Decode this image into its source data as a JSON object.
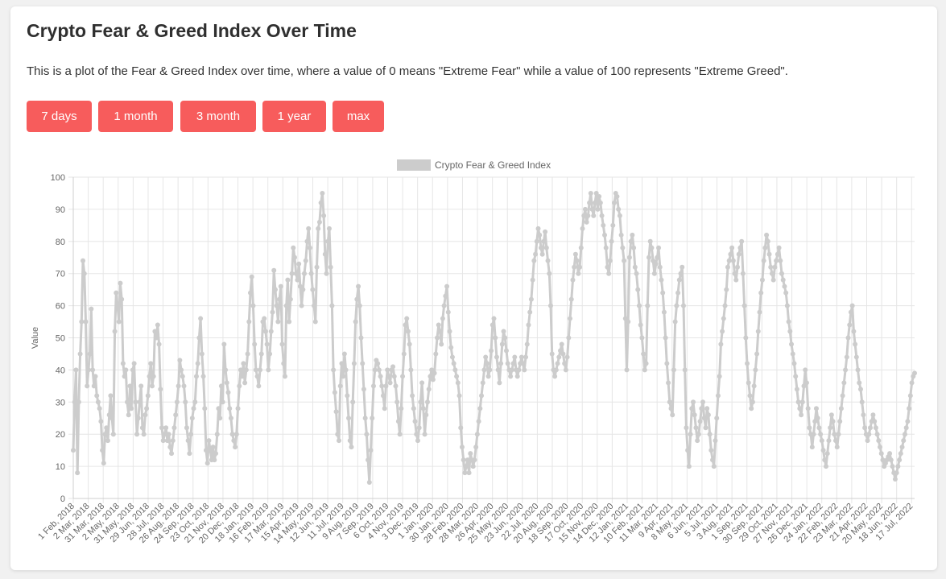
{
  "page": {
    "title": "Crypto Fear & Greed Index Over Time",
    "description": "This is a plot of the Fear & Greed Index over time, where a value of 0 means \"Extreme Fear\" while a value of 100 represents \"Extreme Greed\".",
    "buttons": [
      "7 days",
      "1 month",
      "3 month",
      "1 year",
      "max"
    ]
  },
  "colors": {
    "button": "#f75c5c",
    "line": "#cccccc",
    "grid": "#e6e6e6"
  },
  "chart_data": {
    "type": "line",
    "ylabel": "Value",
    "ylim": [
      0,
      100
    ],
    "ytick_labels": [
      "0",
      "10",
      "20",
      "30",
      "40",
      "50",
      "60",
      "70",
      "80",
      "90",
      "100"
    ],
    "xtick_labels": [
      "1 Feb, 2018",
      "2 Mar, 2018",
      "31 Mar, 2018",
      "2 May, 2018",
      "31 May, 2018",
      "29 Jun, 2018",
      "28 Jul, 2018",
      "26 Aug, 2018",
      "24 Sep, 2018",
      "23 Oct, 2018",
      "21 Nov, 2018",
      "20 Dec, 2018",
      "18 Jan, 2019",
      "16 Feb, 2019",
      "17 Mar, 2019",
      "15 Apr, 2019",
      "14 May, 2019",
      "12 Jun, 2019",
      "11 Jul, 2019",
      "9 Aug, 2019",
      "7 Sep, 2019",
      "6 Oct, 2019",
      "4 Nov, 2019",
      "3 Dec, 2019",
      "1 Jan, 2020",
      "30 Jan, 2020",
      "28 Feb, 2020",
      "28 Mar, 2020",
      "26 Apr, 2020",
      "25 May, 2020",
      "23 Jun, 2020",
      "22 Jul, 2020",
      "20 Aug, 2020",
      "18 Sep, 2020",
      "17 Oct, 2020",
      "15 Nov, 2020",
      "14 Dec, 2020",
      "12 Jan, 2021",
      "10 Feb, 2021",
      "11 Mar, 2021",
      "9 Apr, 2021",
      "8 May, 2021",
      "6 Jun, 2021",
      "5 Jul, 2021",
      "3 Aug, 2021",
      "1 Sep, 2021",
      "30 Sep, 2021",
      "29 Oct, 2021",
      "27 Nov, 2021",
      "26 Dec, 2021",
      "24 Jan, 2022",
      "22 Feb, 2022",
      "23 Mar, 2022",
      "21 Apr, 2022",
      "20 May, 2022",
      "18 Jun, 2022",
      "17 Jul, 2022"
    ],
    "grid": true,
    "legend": "top-center",
    "series": [
      {
        "name": "Crypto Fear & Greed Index",
        "values": [
          15,
          30,
          40,
          8,
          30,
          45,
          55,
          74,
          70,
          55,
          35,
          40,
          45,
          59,
          40,
          35,
          38,
          32,
          30,
          28,
          24,
          15,
          11,
          20,
          22,
          18,
          26,
          32,
          25,
          20,
          52,
          64,
          60,
          55,
          67,
          62,
          42,
          38,
          40,
          30,
          26,
          35,
          28,
          40,
          42,
          30,
          20,
          25,
          30,
          35,
          22,
          20,
          26,
          28,
          32,
          38,
          42,
          35,
          38,
          52,
          50,
          54,
          48,
          34,
          22,
          18,
          20,
          22,
          18,
          20,
          16,
          14,
          18,
          22,
          26,
          30,
          35,
          43,
          40,
          38,
          35,
          30,
          22,
          18,
          14,
          20,
          25,
          28,
          30,
          38,
          42,
          50,
          56,
          45,
          38,
          28,
          15,
          11,
          18,
          15,
          12,
          16,
          12,
          14,
          20,
          28,
          25,
          35,
          30,
          48,
          40,
          36,
          33,
          28,
          25,
          20,
          18,
          16,
          20,
          28,
          35,
          40,
          38,
          42,
          36,
          40,
          45,
          55,
          64,
          69,
          60,
          48,
          40,
          38,
          35,
          40,
          45,
          55,
          56,
          52,
          48,
          40,
          45,
          52,
          58,
          71,
          65,
          60,
          55,
          62,
          66,
          48,
          42,
          38,
          60,
          68,
          55,
          62,
          70,
          78,
          75,
          70,
          68,
          73,
          66,
          60,
          65,
          70,
          74,
          80,
          84,
          78,
          70,
          65,
          60,
          55,
          72,
          84,
          86,
          92,
          95,
          88,
          76,
          70,
          80,
          84,
          72,
          60,
          40,
          33,
          27,
          20,
          18,
          35,
          42,
          38,
          45,
          40,
          32,
          25,
          18,
          16,
          30,
          42,
          55,
          62,
          66,
          60,
          50,
          42,
          34,
          25,
          20,
          12,
          5,
          15,
          25,
          35,
          40,
          43,
          42,
          40,
          38,
          35,
          32,
          28,
          35,
          40,
          38,
          36,
          40,
          41,
          38,
          35,
          30,
          24,
          20,
          28,
          38,
          45,
          54,
          56,
          52,
          48,
          40,
          32,
          28,
          24,
          20,
          18,
          22,
          30,
          36,
          28,
          20,
          26,
          30,
          34,
          38,
          40,
          37,
          39,
          45,
          50,
          54,
          52,
          48,
          56,
          60,
          63,
          66,
          58,
          52,
          47,
          44,
          42,
          40,
          38,
          36,
          32,
          22,
          16,
          12,
          8,
          10,
          12,
          8,
          14,
          12,
          10,
          12,
          16,
          20,
          24,
          28,
          32,
          36,
          40,
          44,
          42,
          38,
          40,
          46,
          54,
          56,
          50,
          44,
          40,
          36,
          42,
          48,
          52,
          50,
          46,
          42,
          40,
          38,
          40,
          42,
          44,
          40,
          38,
          40,
          42,
          44,
          42,
          40,
          44,
          48,
          54,
          58,
          62,
          68,
          74,
          76,
          80,
          84,
          82,
          78,
          76,
          80,
          83,
          78,
          74,
          70,
          60,
          45,
          40,
          38,
          40,
          42,
          44,
          46,
          48,
          45,
          42,
          40,
          44,
          50,
          56,
          62,
          68,
          72,
          76,
          74,
          70,
          72,
          78,
          84,
          88,
          90,
          86,
          88,
          92,
          95,
          90,
          88,
          92,
          95,
          90,
          94,
          92,
          88,
          85,
          82,
          78,
          72,
          70,
          74,
          80,
          85,
          92,
          95,
          94,
          90,
          88,
          82,
          78,
          74,
          56,
          40,
          55,
          75,
          80,
          82,
          78,
          72,
          70,
          65,
          60,
          54,
          50,
          45,
          40,
          42,
          60,
          75,
          80,
          78,
          74,
          70,
          73,
          75,
          78,
          72,
          68,
          64,
          58,
          50,
          42,
          36,
          30,
          28,
          26,
          40,
          55,
          60,
          64,
          68,
          70,
          72,
          60,
          40,
          22,
          15,
          10,
          20,
          28,
          30,
          26,
          22,
          18,
          20,
          24,
          28,
          30,
          25,
          22,
          28,
          26,
          20,
          15,
          12,
          10,
          18,
          25,
          32,
          38,
          48,
          52,
          56,
          60,
          65,
          72,
          74,
          76,
          78,
          74,
          70,
          68,
          72,
          76,
          78,
          80,
          70,
          60,
          50,
          42,
          36,
          32,
          28,
          30,
          35,
          40,
          45,
          52,
          58,
          64,
          68,
          74,
          78,
          82,
          80,
          76,
          72,
          70,
          68,
          72,
          74,
          76,
          78,
          74,
          70,
          68,
          66,
          64,
          60,
          55,
          52,
          48,
          45,
          42,
          38,
          34,
          30,
          28,
          26,
          30,
          35,
          40,
          36,
          28,
          22,
          20,
          16,
          20,
          24,
          28,
          25,
          22,
          20,
          18,
          15,
          12,
          10,
          14,
          18,
          22,
          26,
          24,
          20,
          18,
          16,
          20,
          24,
          28,
          32,
          36,
          40,
          44,
          50,
          54,
          58,
          60,
          52,
          48,
          44,
          40,
          36,
          34,
          30,
          26,
          22,
          20,
          18,
          20,
          22,
          24,
          26,
          24,
          22,
          20,
          18,
          16,
          14,
          12,
          10,
          11,
          12,
          13,
          14,
          12,
          10,
          8,
          6,
          8,
          10,
          12,
          14,
          16,
          18,
          20,
          22,
          24,
          28,
          32,
          36,
          38,
          39
        ]
      }
    ]
  }
}
